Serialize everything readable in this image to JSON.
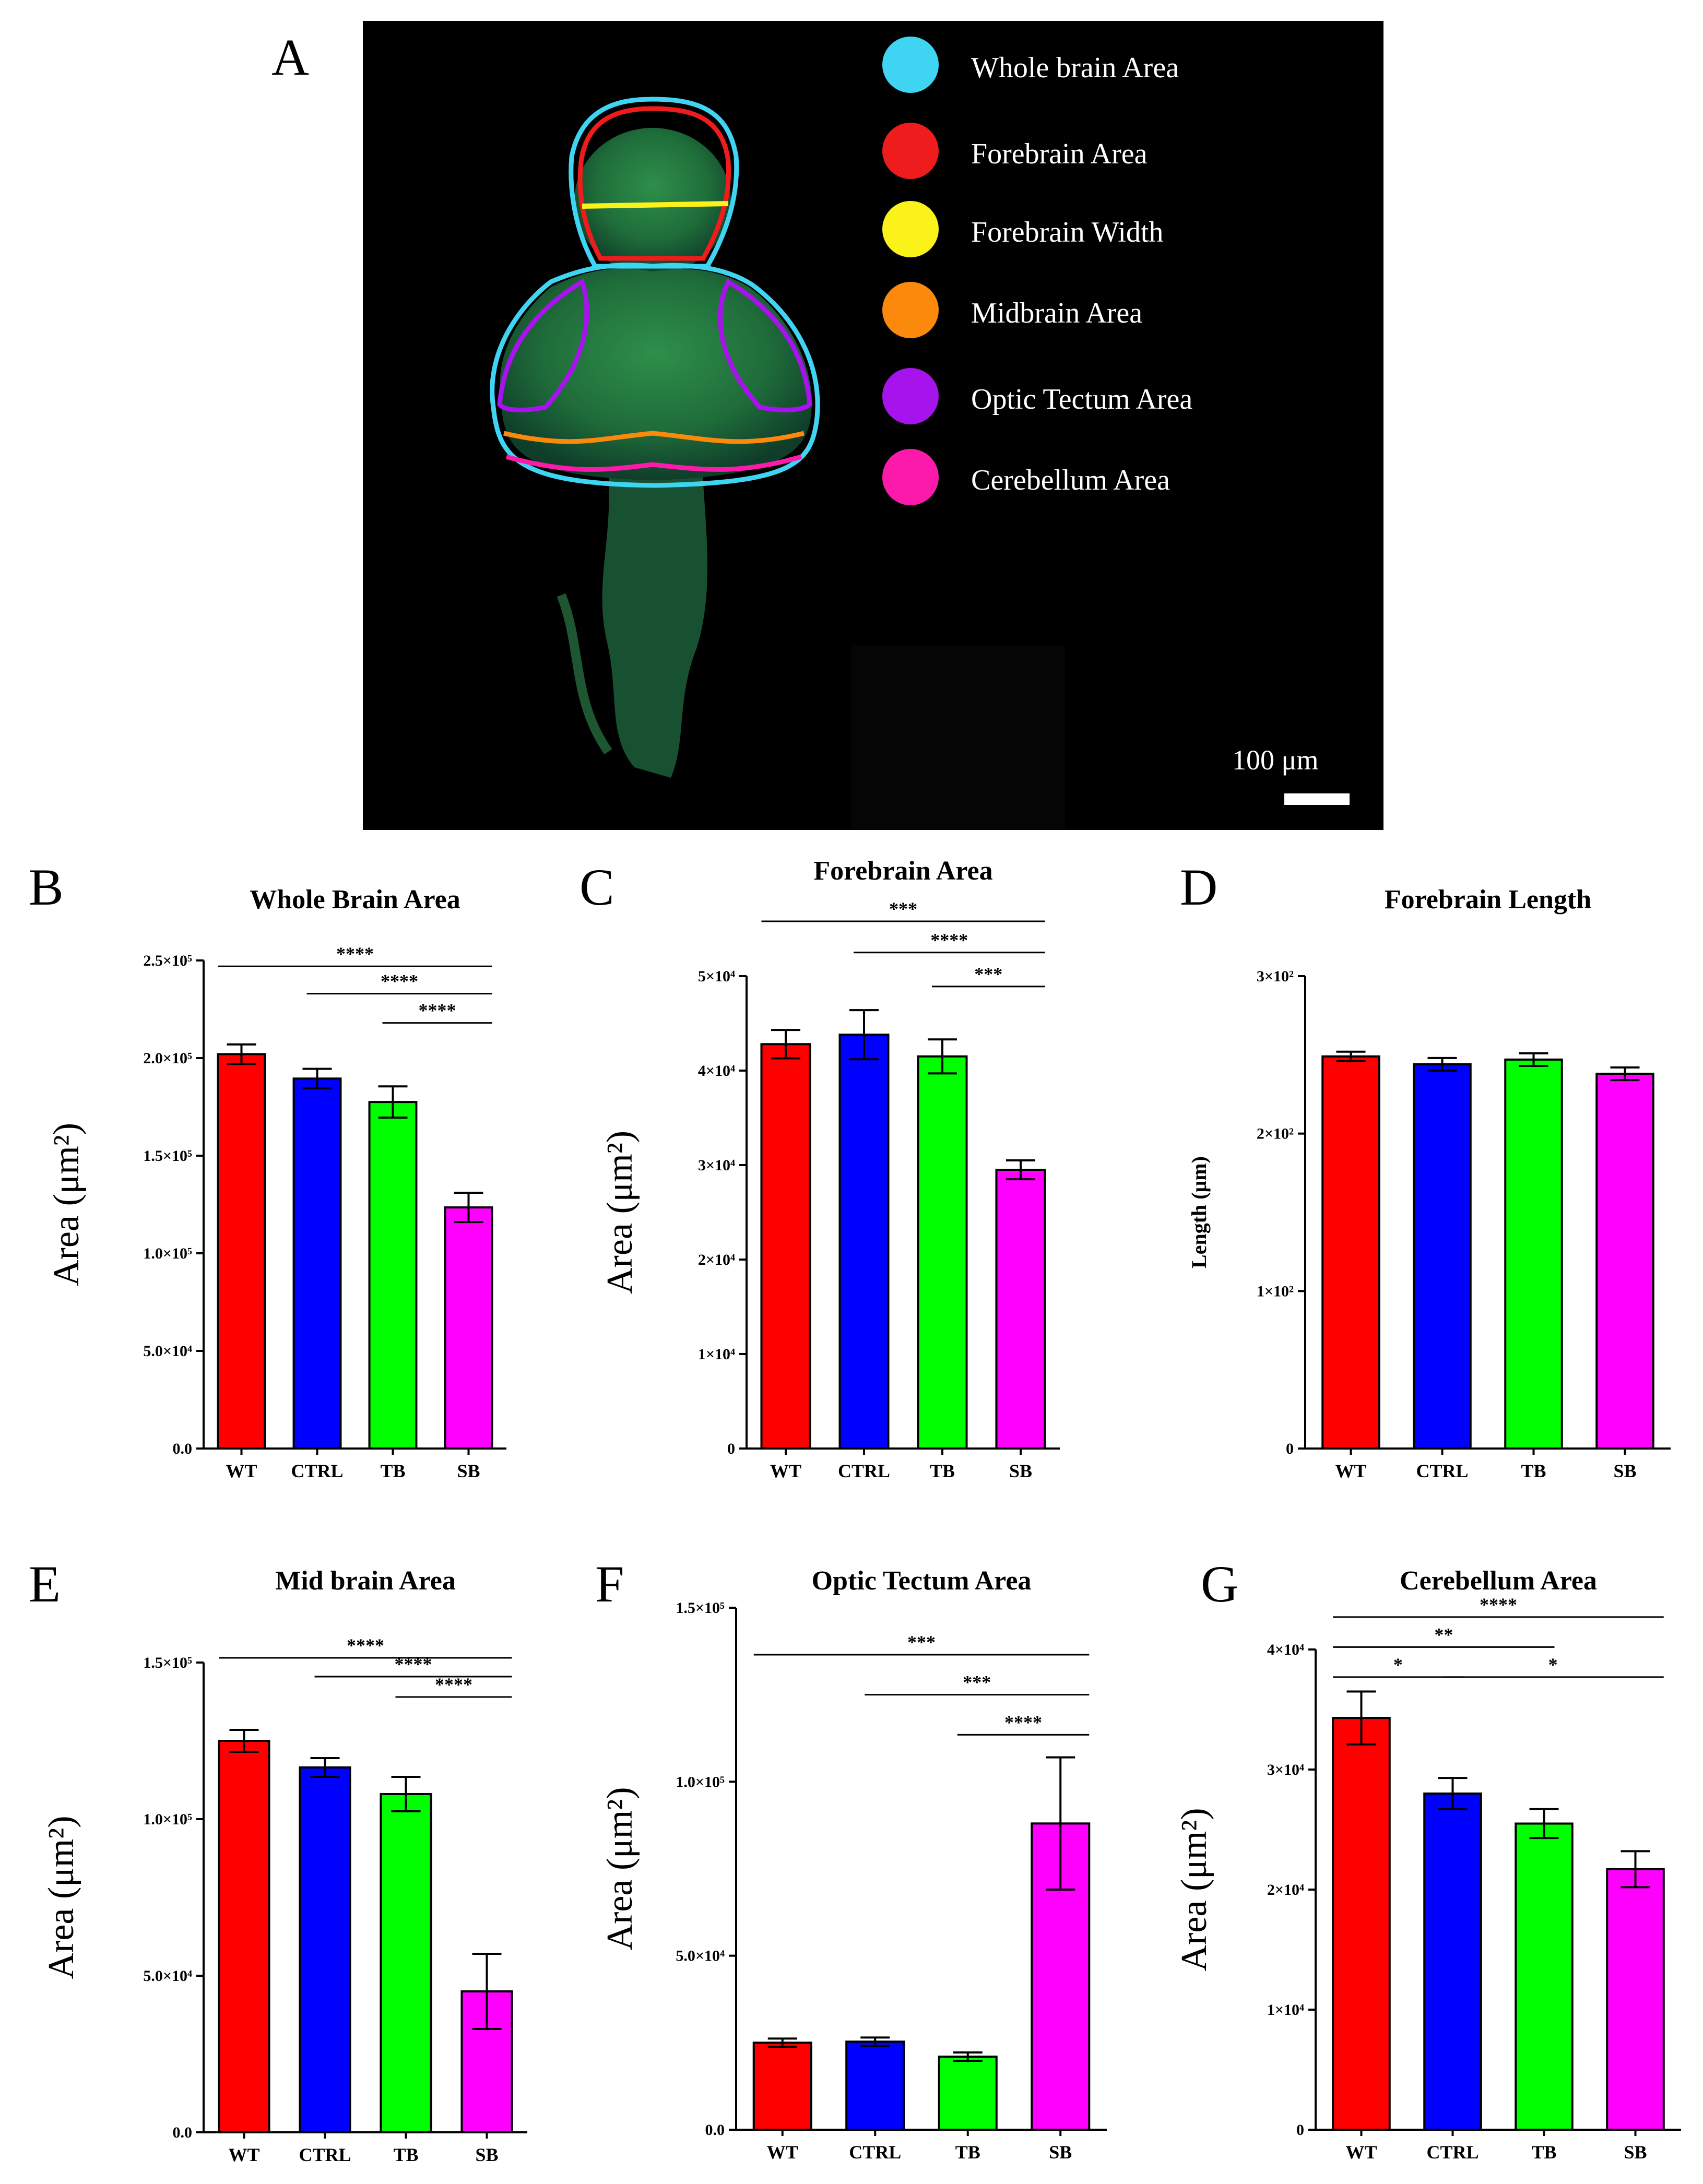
{
  "panel_letters": [
    "A",
    "B",
    "C",
    "D",
    "E",
    "F",
    "G"
  ],
  "panel_a": {
    "legend": [
      {
        "label": "Whole brain Area",
        "color": "#3fd4f2"
      },
      {
        "label": "Forebrain Area",
        "color": "#ee1c1c"
      },
      {
        "label": "Forebrain Width",
        "color": "#fbf21a"
      },
      {
        "label": "Midbrain Area",
        "color": "#fb8a0c"
      },
      {
        "label": "Optic Tectum Area",
        "color": "#a713ec"
      },
      {
        "label": "Cerebellum Area",
        "color": "#fb1aa9"
      }
    ],
    "scale_bar_label": "100 μm"
  },
  "chart_data": [
    {
      "panel": "B",
      "type": "bar",
      "title": "Whole Brain Area",
      "ylabel": "Area (μm²)",
      "ylabel_style": "large",
      "categories": [
        "WT",
        "CTRL",
        "TB",
        "SB"
      ],
      "values": [
        202000,
        189500,
        177500,
        123500
      ],
      "errors": [
        5000,
        5000,
        8000,
        7500
      ],
      "colors": [
        "#ff0000",
        "#0000ff",
        "#00ff00",
        "#ff00ff"
      ],
      "ylim": [
        0,
        250000
      ],
      "yticks": [
        0,
        50000,
        100000,
        150000,
        200000,
        250000
      ],
      "ytick_labels": [
        "0.0",
        "5.0×10⁴",
        "1.0×10⁵",
        "1.5×10⁵",
        "2.0×10⁵",
        "2.5×10⁵"
      ],
      "significance": [
        {
          "from": 0,
          "to": 3,
          "label": "****",
          "y": 247000
        },
        {
          "from": 1,
          "to": 3,
          "label": "****",
          "y": 233000
        },
        {
          "from": 2,
          "to": 3,
          "label": "****",
          "y": 218000
        }
      ]
    },
    {
      "panel": "C",
      "type": "bar",
      "title": "Forebrain Area",
      "ylabel": "Area (μm²)",
      "ylabel_style": "large",
      "categories": [
        "WT",
        "CTRL",
        "TB",
        "SB"
      ],
      "values": [
        42800,
        43800,
        41500,
        29500
      ],
      "errors": [
        1500,
        2600,
        1800,
        1000
      ],
      "colors": [
        "#ff0000",
        "#0000ff",
        "#00ff00",
        "#ff00ff"
      ],
      "ylim": [
        0,
        50000
      ],
      "yticks": [
        0,
        10000,
        20000,
        30000,
        40000,
        50000
      ],
      "ytick_labels": [
        "0",
        "1×10⁴",
        "2×10⁴",
        "3×10⁴",
        "4×10⁴",
        "5×10⁴"
      ],
      "significance": [
        {
          "from": 0,
          "to": 3,
          "label": "***",
          "y": 55800
        },
        {
          "from": 1,
          "to": 3,
          "label": "****",
          "y": 52500
        },
        {
          "from": 2,
          "to": 3,
          "label": "***",
          "y": 48900
        }
      ]
    },
    {
      "panel": "D",
      "type": "bar",
      "title": "Forebrain Length",
      "ylabel": "Length (μm)",
      "ylabel_style": "small",
      "categories": [
        "WT",
        "CTRL",
        "TB",
        "SB"
      ],
      "values": [
        249,
        244,
        247,
        238
      ],
      "errors": [
        3,
        4,
        4,
        4
      ],
      "colors": [
        "#ff0000",
        "#0000ff",
        "#00ff00",
        "#ff00ff"
      ],
      "ylim": [
        0,
        300
      ],
      "yticks": [
        0,
        100,
        200,
        300
      ],
      "ytick_labels": [
        "0",
        "1×10²",
        "2×10²",
        "3×10²"
      ],
      "significance": []
    },
    {
      "panel": "E",
      "type": "bar",
      "title": "Mid brain Area",
      "ylabel": "Area (μm²)",
      "ylabel_style": "large",
      "categories": [
        "WT",
        "CTRL",
        "TB",
        "SB"
      ],
      "values": [
        125000,
        116500,
        108000,
        45000
      ],
      "errors": [
        3500,
        3000,
        5500,
        12000
      ],
      "colors": [
        "#ff0000",
        "#0000ff",
        "#00ff00",
        "#ff00ff"
      ],
      "ylim": [
        0,
        150000
      ],
      "yticks": [
        0,
        50000,
        100000,
        150000
      ],
      "ytick_labels": [
        "0.0",
        "5.0×10⁴",
        "1.0×10⁵",
        "1.5×10⁵"
      ],
      "significance": [
        {
          "from": 0,
          "to": 3,
          "label": "****",
          "y": 151500
        },
        {
          "from": 1,
          "to": 3,
          "label": "****",
          "y": 145500
        },
        {
          "from": 2,
          "to": 3,
          "label": "****",
          "y": 139000
        }
      ]
    },
    {
      "panel": "F",
      "type": "bar",
      "title": "Optic Tectum Area",
      "ylabel": "Area (μm²)",
      "ylabel_style": "large",
      "categories": [
        "WT",
        "CTRL",
        "TB",
        "SB"
      ],
      "values": [
        25000,
        25300,
        21000,
        88000
      ],
      "errors": [
        1200,
        1200,
        1200,
        19000
      ],
      "colors": [
        "#ff0000",
        "#0000ff",
        "#00ff00",
        "#ff00ff"
      ],
      "ylim": [
        0,
        150000
      ],
      "yticks": [
        0,
        50000,
        100000,
        150000
      ],
      "ytick_labels": [
        "0.0",
        "5.0×10⁴",
        "1.0×10⁵",
        "1.5×10⁵"
      ],
      "significance": [
        {
          "from": 0,
          "to": 3,
          "label": "***",
          "y": 136500
        },
        {
          "from": 1,
          "to": 3,
          "label": "***",
          "y": 125000
        },
        {
          "from": 2,
          "to": 3,
          "label": "****",
          "y": 113500
        }
      ]
    },
    {
      "panel": "G",
      "type": "bar",
      "title": "Cerebellum Area",
      "ylabel": "Area (μm²)",
      "ylabel_style": "large",
      "categories": [
        "WT",
        "CTRL",
        "TB",
        "SB"
      ],
      "values": [
        34300,
        28000,
        25500,
        21700
      ],
      "errors": [
        2200,
        1300,
        1200,
        1500
      ],
      "colors": [
        "#ff0000",
        "#0000ff",
        "#00ff00",
        "#ff00ff"
      ],
      "ylim": [
        0,
        40000
      ],
      "yticks": [
        0,
        10000,
        20000,
        30000,
        40000
      ],
      "ytick_labels": [
        "0",
        "1×10⁴",
        "2×10⁴",
        "3×10⁴",
        "4×10⁴"
      ],
      "significance": [
        {
          "from": 0,
          "to": 3,
          "label": "****",
          "y": 42700
        },
        {
          "from": 0,
          "to": 2,
          "label": "**",
          "y": 40200
        },
        {
          "from": 0,
          "to": 1,
          "label": "*",
          "y": 37700
        },
        {
          "from": 1,
          "to": 3,
          "label": "*",
          "y": 37700
        }
      ]
    }
  ]
}
